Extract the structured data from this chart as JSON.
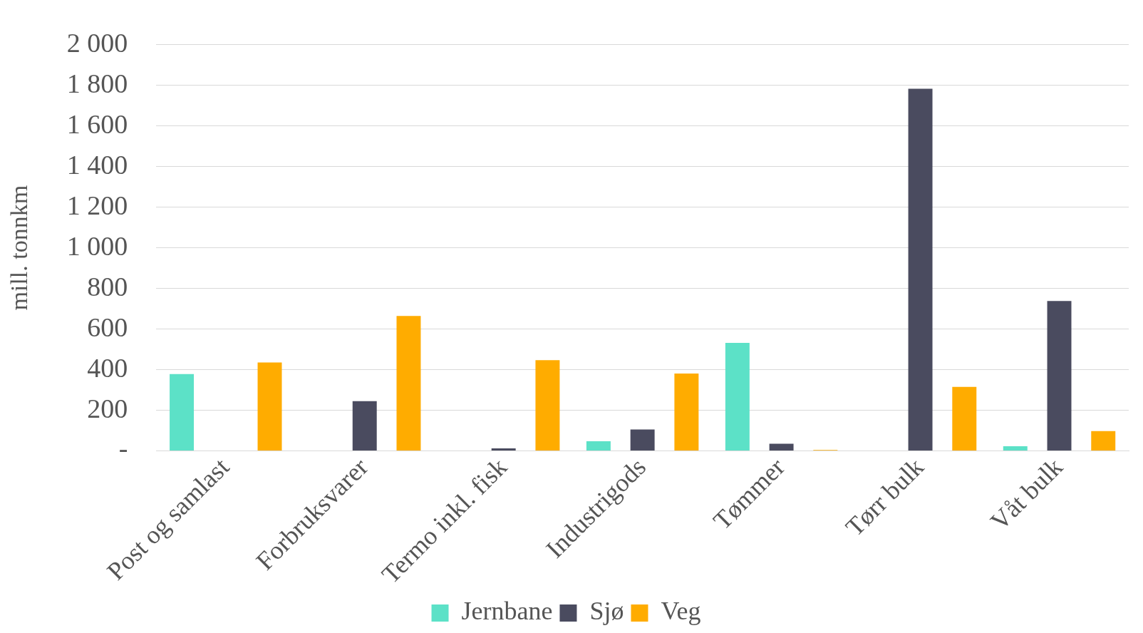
{
  "chart_data": {
    "type": "bar",
    "ylabel": "mill. tonnkm",
    "categories": [
      "Post og samlast",
      "Forbruksvarer",
      "Termo inkl. fisk",
      "Industrigods",
      "Tømmer",
      "Tørr bulk",
      "Våt bulk"
    ],
    "series": [
      {
        "name": "Jernbane",
        "color": "#5ce1c7",
        "values": [
          378,
          0,
          0,
          47,
          532,
          0,
          23
        ]
      },
      {
        "name": "Sjø",
        "color": "#4a4b5f",
        "values": [
          0,
          245,
          12,
          105,
          35,
          1783,
          738
        ]
      },
      {
        "name": "Veg",
        "color": "#ffac00",
        "values": [
          435,
          664,
          447,
          381,
          4,
          315,
          97
        ]
      }
    ],
    "ylim": [
      0,
      2000
    ],
    "yticks": [
      {
        "value": 0,
        "label": "-"
      },
      200,
      400,
      600,
      800,
      {
        "value": 1000,
        "label": "1 000"
      },
      {
        "value": 1200,
        "label": "1 200"
      },
      {
        "value": 1400,
        "label": "1 400"
      },
      {
        "value": 1600,
        "label": "1 600"
      },
      {
        "value": 1800,
        "label": "1 800"
      },
      {
        "value": 2000,
        "label": "2 000"
      }
    ],
    "grid": "y",
    "legend": "bottom"
  }
}
